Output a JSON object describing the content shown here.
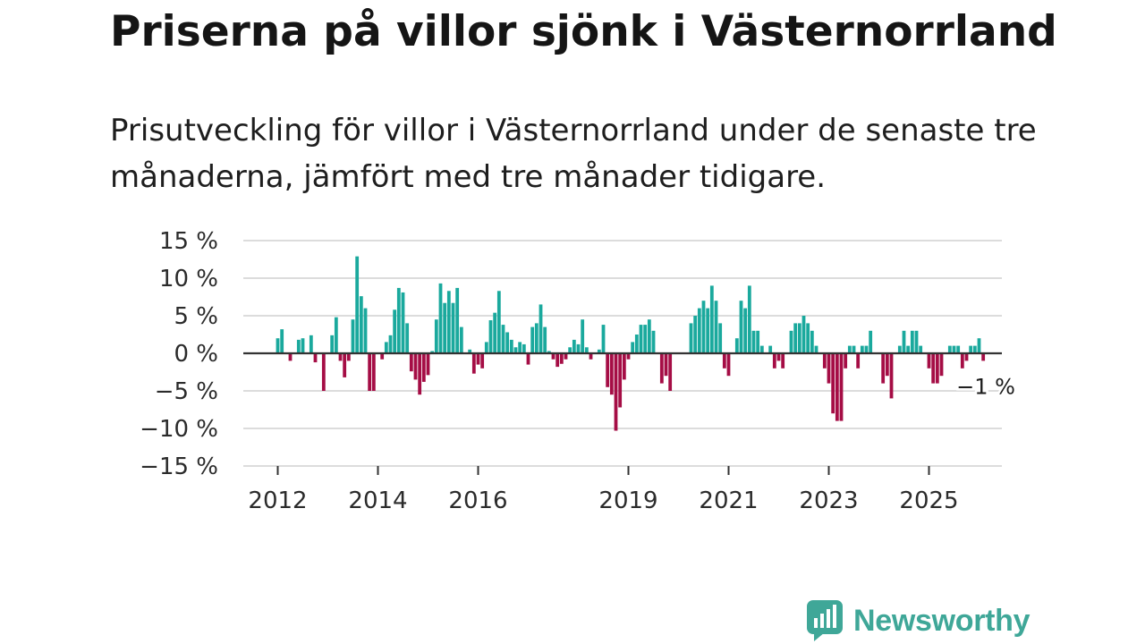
{
  "title": "Priserna på villor sjönk i Västernorrland",
  "subtitle": "Prisutveckling för villor i Västernorrland under de senaste tre månaderna, jämfört med tre månader tidigare.",
  "brand": {
    "name": "Newsworthy",
    "color": "#3fa798"
  },
  "colors": {
    "positive": "#1aa99d",
    "negative": "#a50d45",
    "grid": "#dcdcdc",
    "zero": "#333333"
  },
  "chart_data": {
    "type": "bar",
    "ylim": [
      -15,
      15
    ],
    "y_ticks": [
      15,
      10,
      5,
      0,
      -5,
      -10,
      -15
    ],
    "y_tick_labels": [
      "15 %",
      "10 %",
      "5 %",
      "0 %",
      "−5 %",
      "−10 %",
      "−15 %"
    ],
    "x_tick_labels": [
      "2012",
      "2014",
      "2016",
      "2019",
      "2021",
      "2023",
      "2025"
    ],
    "annotation": "−1 %",
    "series": [
      {
        "name": "Prisutveckling",
        "start": "2012-01",
        "values": [
          2,
          3.2,
          0,
          -1,
          0,
          1.8,
          2,
          0,
          2.4,
          -1.2,
          0,
          -5,
          0,
          2.4,
          4.8,
          -1,
          -3.2,
          -1,
          4.5,
          12.9,
          7.6,
          6,
          -5,
          -5,
          0,
          -0.8,
          1.5,
          2.4,
          5.8,
          8.7,
          8.1,
          4,
          -2.4,
          -3.5,
          -5.5,
          -3.8,
          -2.9,
          0.3,
          4.5,
          9.3,
          6.7,
          8.3,
          6.7,
          8.7,
          3.5,
          0,
          0.5,
          -2.7,
          -1.5,
          -2,
          1.5,
          4.4,
          5.4,
          8.3,
          3.8,
          2.8,
          1.8,
          0.8,
          1.5,
          1.2,
          -1.5,
          3.5,
          4,
          6.5,
          3.5,
          0.3,
          -0.8,
          -1.8,
          -1.4,
          -0.8,
          0.8,
          1.8,
          1.2,
          4.5,
          0.8,
          -0.8,
          0,
          0.5,
          3.8,
          -4.5,
          -5.5,
          -10.3,
          -7.2,
          -3.5,
          -0.8,
          1.5,
          2.5,
          3.8,
          3.8,
          4.5,
          3,
          0,
          -4,
          -3,
          -5,
          0,
          0,
          0,
          0,
          4,
          5,
          6,
          7,
          6,
          9,
          7,
          4,
          -2,
          -3,
          0,
          2,
          7,
          6,
          9,
          3,
          3,
          1,
          0,
          1,
          -2,
          -1,
          -2,
          0,
          3,
          4,
          4,
          5,
          4,
          3,
          1,
          0,
          -2,
          -4,
          -8,
          -9,
          -9,
          -2,
          1,
          1,
          -2,
          1,
          1,
          3,
          0,
          0,
          -4,
          -3,
          -6,
          0,
          1,
          3,
          1,
          3,
          3,
          1,
          0,
          -2,
          -4,
          -4,
          -3,
          0,
          1,
          1,
          1,
          -2,
          -1,
          1,
          1,
          2,
          -1
        ]
      }
    ]
  }
}
